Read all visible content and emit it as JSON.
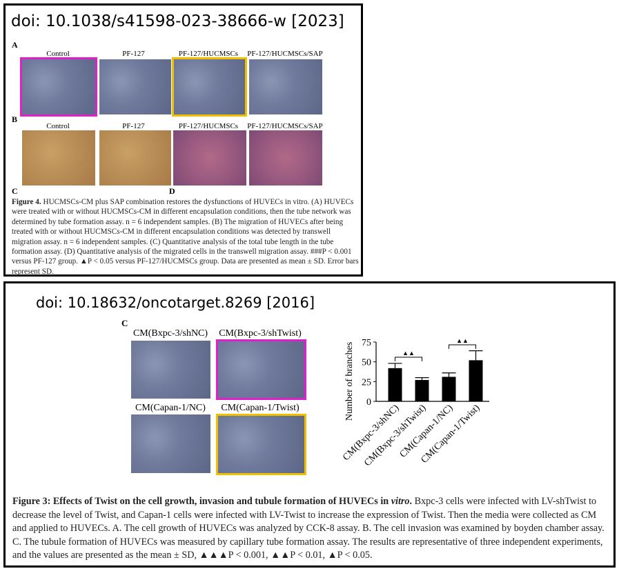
{
  "panel1": {
    "doi": "doi: 10.1038/s41598-023-38666-w [2023]",
    "label_a": "A",
    "label_b": "B",
    "label_c": "C",
    "label_d": "D",
    "row_a": [
      "Control",
      "PF-127",
      "PF-127/HUCMSCs",
      "PF-127/HUCMSCs/SAP"
    ],
    "row_b": [
      "Control",
      "PF-127",
      "PF-127/HUCMSCs",
      "PF-127/HUCMSCs/SAP"
    ],
    "caption_lead": "Figure 4.",
    "caption_body": "HUCMSCs-CM plus SAP combination restores the dysfunctions of HUVECs in vitro. (A) HUVECs were treated with or without HUCMSCs-CM in different encapsulation conditions, then the tube network was determined by tube formation assay. n = 6 independent samples. (B) The migration of HUVECs after being treated with or without HUCMSCs-CM in different encapsulation conditions was detected by transwell migration assay. n = 6 independent samples. (C) Quantitative analysis of the total tube length in the tube formation assay. (D) Quantitative analysis of the migrated cells in the transwell migration assay. ###P < 0.001 versus PF-127 group. ▲P < 0.05 versus PF-127/HUCMSCs group. Data are presented as mean ± SD. Error bars represent SD."
  },
  "panel2": {
    "doi": "doi: 10.18632/oncotarget.8269 [2016]",
    "label_c": "C",
    "images": [
      "CM(Bxpc-3/shNC)",
      "CM(Bxpc-3/shTwist)",
      "CM(Capan-1/NC)",
      "CM(Capan-1/Twist)"
    ],
    "chart": {
      "type": "bar",
      "y_label": "Number of branches",
      "categories": [
        "CM(Bxpc-3/shNC)",
        "CM(Bxpc-3/shTwist)",
        "CM(Capan-1/NC)",
        "CM(Capan-1/Twist)"
      ],
      "values": [
        42,
        27,
        31,
        52
      ],
      "errors": [
        6,
        3,
        5,
        12
      ],
      "color": "#000000",
      "ylim": [
        0,
        75
      ],
      "yticks": [
        0,
        25,
        50,
        75
      ],
      "annotations": [
        "▲▲",
        "▲▲"
      ]
    },
    "caption_lead": "Figure 3: Effects of Twist on the cell growth, invasion and tubule formation of HUVECs in ",
    "caption_italic": "vitro",
    "caption_dot": ".",
    "caption_body": "Bxpc-3 cells were infected with LV-shTwist to decrease the level of Twist, and Capan-1 cells were infected with LV-Twist to increase the expression of Twist. Then the media were collected as CM and applied to HUVECs. A. The cell growth of HUVECs was analyzed by CCK-8 assay. B. The cell invasion was examined by boyden chamber assay. C. The tubule formation of HUVECs was measured by capillary tube formation assay. The results are representative of three independent experiments, and the values are presented as the mean ± SD, ▲▲▲P < 0.001, ▲▲P < 0.01, ▲P < 0.05."
  }
}
